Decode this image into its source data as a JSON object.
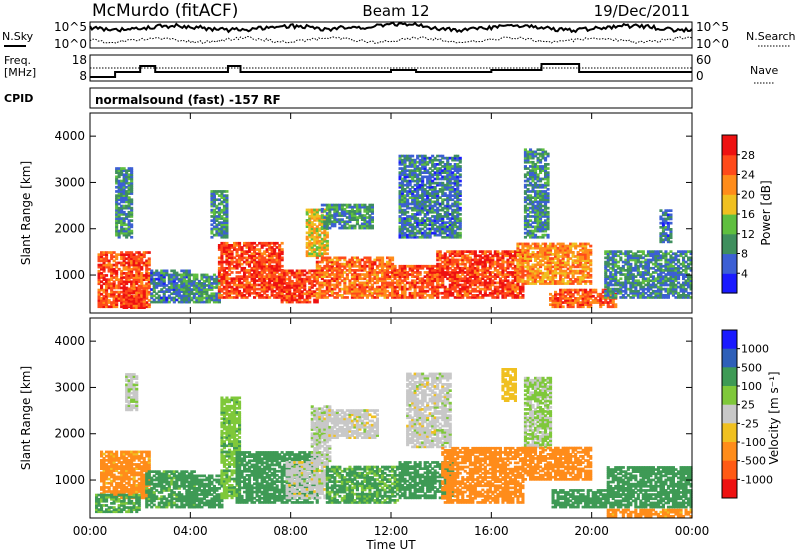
{
  "header": {
    "station": "McMurdo (fitACF)",
    "beam": "Beam 12",
    "date": "19/Dec/2011"
  },
  "noise_panel": {
    "left_label": "N.Sky",
    "right_label": "N.Search",
    "tick_top": "10^5",
    "tick_bottom": "10^0"
  },
  "freq_panel": {
    "left_label_line1": "Freq.",
    "left_label_line2": "[MHz]",
    "left_tick_top": "18",
    "left_tick_bottom": "8",
    "right_label": "Nave",
    "right_tick_top": "60",
    "right_tick_bottom": "0"
  },
  "cpid": {
    "label": "CPID",
    "program": "normalsound (fast) -157 RF"
  },
  "colors": {
    "power": [
      "#1a1aff",
      "#3c5fd4",
      "#3f8f5e",
      "#5fbf3f",
      "#f0c020",
      "#ff8c1a",
      "#ff4a1a",
      "#ee1111"
    ],
    "velocity": [
      "#ee1111",
      "#ff5a14",
      "#ff8c1a",
      "#f0c020",
      "#c8c8c8",
      "#7fc83a",
      "#3e9a55",
      "#2e5fb8",
      "#1a1aff"
    ]
  },
  "chart_data": [
    {
      "type": "heatmap",
      "name": "power",
      "title": "",
      "xlabel": "",
      "ylabel": "Slant Range [km]",
      "x_ticks": [
        "00:00",
        "04:00",
        "08:00",
        "12:00",
        "16:00",
        "20:00",
        "00:00"
      ],
      "y_ticks": [
        "1000",
        "2000",
        "3000",
        "4000"
      ],
      "ylim": [
        180,
        4500
      ],
      "xlim_hours": [
        0,
        24
      ],
      "colorbar_label": "Power [dB]",
      "colorbar_ticks": [
        "4",
        "8",
        "12",
        "16",
        "20",
        "24",
        "28"
      ],
      "clim": [
        0,
        30
      ],
      "grid": false,
      "regions": [
        {
          "t": [
            0.3,
            2.4
          ],
          "r": [
            300,
            1500
          ],
          "level": 26
        },
        {
          "t": [
            1.0,
            1.7
          ],
          "r": [
            1800,
            3300
          ],
          "level": 9
        },
        {
          "t": [
            1.3,
            2.2
          ],
          "r": [
            280,
            700
          ],
          "level": 28
        },
        {
          "t": [
            2.4,
            4.0
          ],
          "r": [
            400,
            1100
          ],
          "level": 8
        },
        {
          "t": [
            3.6,
            5.1
          ],
          "r": [
            400,
            1000
          ],
          "level": 10
        },
        {
          "t": [
            4.8,
            5.4
          ],
          "r": [
            1800,
            2800
          ],
          "level": 10
        },
        {
          "t": [
            5.1,
            7.6
          ],
          "r": [
            500,
            1700
          ],
          "level": 27
        },
        {
          "t": [
            7.6,
            9.0
          ],
          "r": [
            400,
            1100
          ],
          "level": 27
        },
        {
          "t": [
            8.6,
            9.4
          ],
          "r": [
            1400,
            2400
          ],
          "level": 18
        },
        {
          "t": [
            9.2,
            11.2
          ],
          "r": [
            2000,
            2500
          ],
          "level": 10
        },
        {
          "t": [
            9.0,
            12.0
          ],
          "r": [
            500,
            1400
          ],
          "level": 24
        },
        {
          "t": [
            12.1,
            13.8
          ],
          "r": [
            500,
            1200
          ],
          "level": 26
        },
        {
          "t": [
            12.3,
            14.7
          ],
          "r": [
            1800,
            3600
          ],
          "level": 8
        },
        {
          "t": [
            13.8,
            17.3
          ],
          "r": [
            500,
            1500
          ],
          "level": 27
        },
        {
          "t": [
            17.3,
            18.3
          ],
          "r": [
            1800,
            3700
          ],
          "level": 9
        },
        {
          "t": [
            17.0,
            20.0
          ],
          "r": [
            800,
            1700
          ],
          "level": 22
        },
        {
          "t": [
            18.3,
            21.0
          ],
          "r": [
            300,
            700
          ],
          "level": 25
        },
        {
          "t": [
            20.5,
            24.0
          ],
          "r": [
            500,
            1500
          ],
          "level": 9
        },
        {
          "t": [
            22.7,
            23.2
          ],
          "r": [
            1700,
            2400
          ],
          "level": 8
        }
      ]
    },
    {
      "type": "heatmap",
      "name": "velocity",
      "title": "",
      "xlabel": "Time UT",
      "ylabel": "Slant Range [km]",
      "x_ticks": [
        "00:00",
        "04:00",
        "08:00",
        "12:00",
        "16:00",
        "20:00",
        "00:00"
      ],
      "y_ticks": [
        "1000",
        "2000",
        "3000",
        "4000"
      ],
      "ylim": [
        180,
        4500
      ],
      "xlim_hours": [
        0,
        24
      ],
      "colorbar_label": "Velocity [m s⁻¹]",
      "colorbar_ticks": [
        "1000",
        "500",
        "100",
        "25",
        "-25",
        "-100",
        "-500",
        "-1000"
      ],
      "grid": false,
      "regions": [
        {
          "t": [
            0.4,
            2.4
          ],
          "r": [
            600,
            1600
          ],
          "v": -150
        },
        {
          "t": [
            0.2,
            2.0
          ],
          "r": [
            300,
            700
          ],
          "v": 120
        },
        {
          "t": [
            1.4,
            1.9
          ],
          "r": [
            2500,
            3300
          ],
          "v": 10
        },
        {
          "t": [
            2.2,
            4.2
          ],
          "r": [
            400,
            1200
          ],
          "v": 150
        },
        {
          "t": [
            3.9,
            5.2
          ],
          "r": [
            400,
            1100
          ],
          "v": 300
        },
        {
          "t": [
            5.2,
            5.9
          ],
          "r": [
            600,
            2800
          ],
          "v": 80
        },
        {
          "t": [
            5.8,
            9.0
          ],
          "r": [
            500,
            1600
          ],
          "v": 300
        },
        {
          "t": [
            7.8,
            9.4
          ],
          "r": [
            600,
            1400
          ],
          "v": 0
        },
        {
          "t": [
            8.8,
            9.5
          ],
          "r": [
            1400,
            2600
          ],
          "v": 10
        },
        {
          "t": [
            9.0,
            11.4
          ],
          "r": [
            1900,
            2500
          ],
          "v": 0
        },
        {
          "t": [
            9.4,
            12.2
          ],
          "r": [
            500,
            1300
          ],
          "v": 120
        },
        {
          "t": [
            12.3,
            14.4
          ],
          "r": [
            600,
            1400
          ],
          "v": 300
        },
        {
          "t": [
            12.6,
            14.3
          ],
          "r": [
            1700,
            3300
          ],
          "v": 0
        },
        {
          "t": [
            14.0,
            17.3
          ],
          "r": [
            500,
            1700
          ],
          "v": -200
        },
        {
          "t": [
            16.4,
            17.0
          ],
          "r": [
            2700,
            3400
          ],
          "v": -60
        },
        {
          "t": [
            17.3,
            18.4
          ],
          "r": [
            1700,
            3200
          ],
          "v": 30
        },
        {
          "t": [
            17.2,
            20.0
          ],
          "r": [
            1000,
            1700
          ],
          "v": -200
        },
        {
          "t": [
            18.4,
            20.6
          ],
          "r": [
            400,
            800
          ],
          "v": 300
        },
        {
          "t": [
            20.6,
            24.0
          ],
          "r": [
            400,
            1300
          ],
          "v": 200
        },
        {
          "t": [
            20.6,
            24.0
          ],
          "r": [
            200,
            350
          ],
          "v": -150
        }
      ]
    }
  ]
}
